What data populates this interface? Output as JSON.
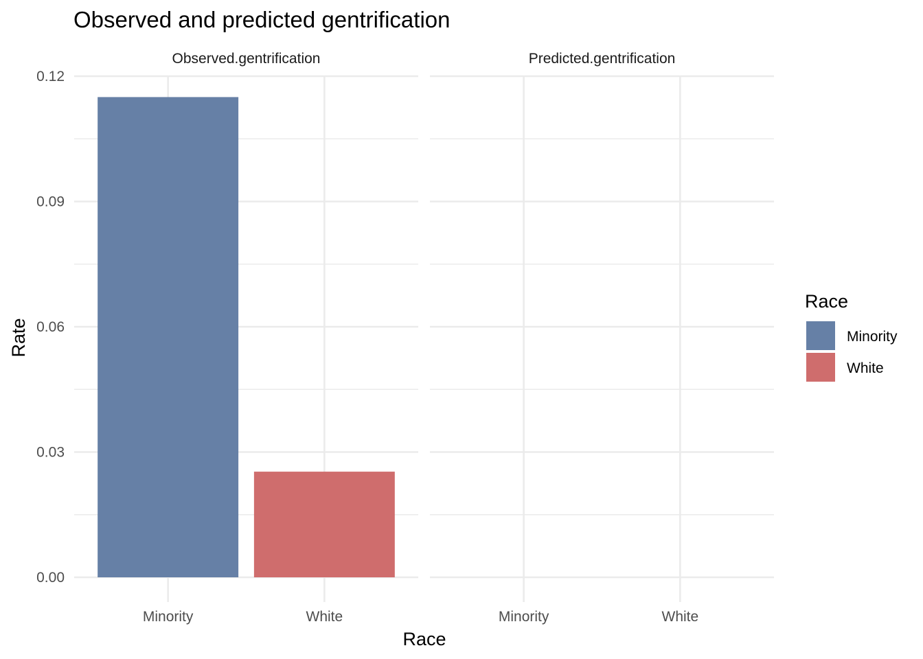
{
  "chart_data": {
    "type": "bar",
    "title": "Observed and predicted gentrification",
    "xlabel": "Race",
    "ylabel": "Rate",
    "ylim": [
      0,
      0.12
    ],
    "yticks": [
      0.0,
      0.03,
      0.06,
      0.09,
      0.12
    ],
    "ytick_labels": [
      "0.00",
      "0.03",
      "0.06",
      "0.09",
      "0.12"
    ],
    "categories": [
      "Minority",
      "White"
    ],
    "colors": {
      "Minority": "#6680a6",
      "White": "#cf6d6d"
    },
    "facets": [
      {
        "label": "Observed.gentrification",
        "values": [
          0.115,
          0.0253
        ]
      },
      {
        "label": "Predicted.gentrification",
        "values": [
          null,
          null
        ]
      }
    ],
    "legend": {
      "title": "Race",
      "placement": "right",
      "entries": [
        "Minority",
        "White"
      ]
    },
    "grid": true
  }
}
